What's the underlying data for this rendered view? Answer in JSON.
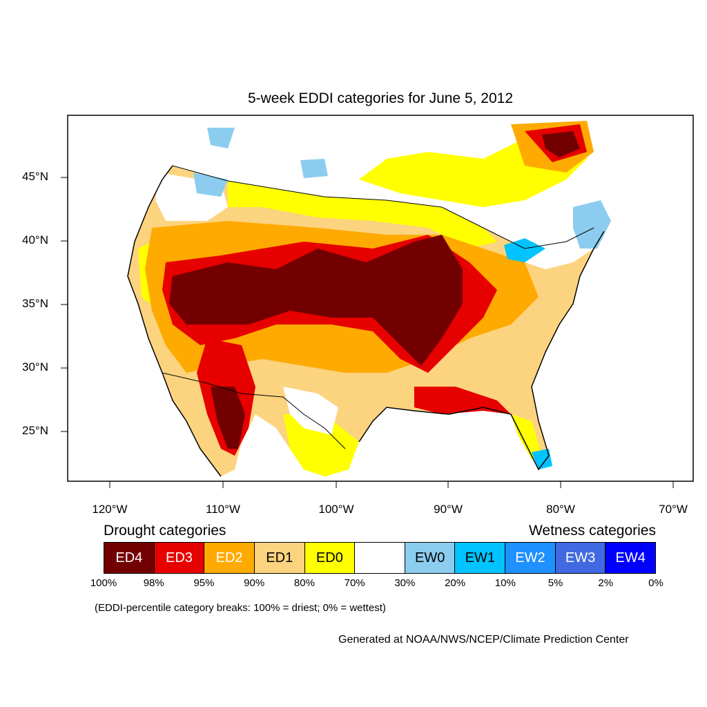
{
  "title": "5-week EDDI categories for June 5, 2012",
  "lat_labels": [
    "45°N",
    "40°N",
    "35°N",
    "30°N",
    "25°N"
  ],
  "lon_labels": [
    "120°W",
    "110°W",
    "100°W",
    "90°W",
    "80°W",
    "70°W"
  ],
  "legend": {
    "drought_heading": "Drought categories",
    "wetness_heading": "Wetness categories",
    "categories": [
      {
        "label": "ED4",
        "color": "#730000",
        "text_color": "#ffffff"
      },
      {
        "label": "ED3",
        "color": "#e60000",
        "text_color": "#ffffff"
      },
      {
        "label": "ED2",
        "color": "#ffaa00",
        "text_color": "#ffffff"
      },
      {
        "label": "ED1",
        "color": "#fcd37f",
        "text_color": "#000000"
      },
      {
        "label": "ED0",
        "color": "#ffff00",
        "text_color": "#000000"
      },
      {
        "label": "",
        "color": "#ffffff",
        "text_color": "#000000"
      },
      {
        "label": "EW0",
        "color": "#8ccdef",
        "text_color": "#000000"
      },
      {
        "label": "EW1",
        "color": "#00c3ff",
        "text_color": "#000000"
      },
      {
        "label": "EW2",
        "color": "#1e90ff",
        "text_color": "#ffffff"
      },
      {
        "label": "EW3",
        "color": "#4169e1",
        "text_color": "#ffffff"
      },
      {
        "label": "EW4",
        "color": "#0000ff",
        "text_color": "#ffffff"
      }
    ],
    "percentiles": [
      "100%",
      "98%",
      "95%",
      "90%",
      "80%",
      "70%",
      "30%",
      "20%",
      "10%",
      "5%",
      "2%",
      "0%"
    ]
  },
  "note": "(EDDI-percentile category breaks: 100% = driest; 0% = wettest)",
  "credit": "Generated at NOAA/NWS/NCEP/Climate Prediction Center"
}
